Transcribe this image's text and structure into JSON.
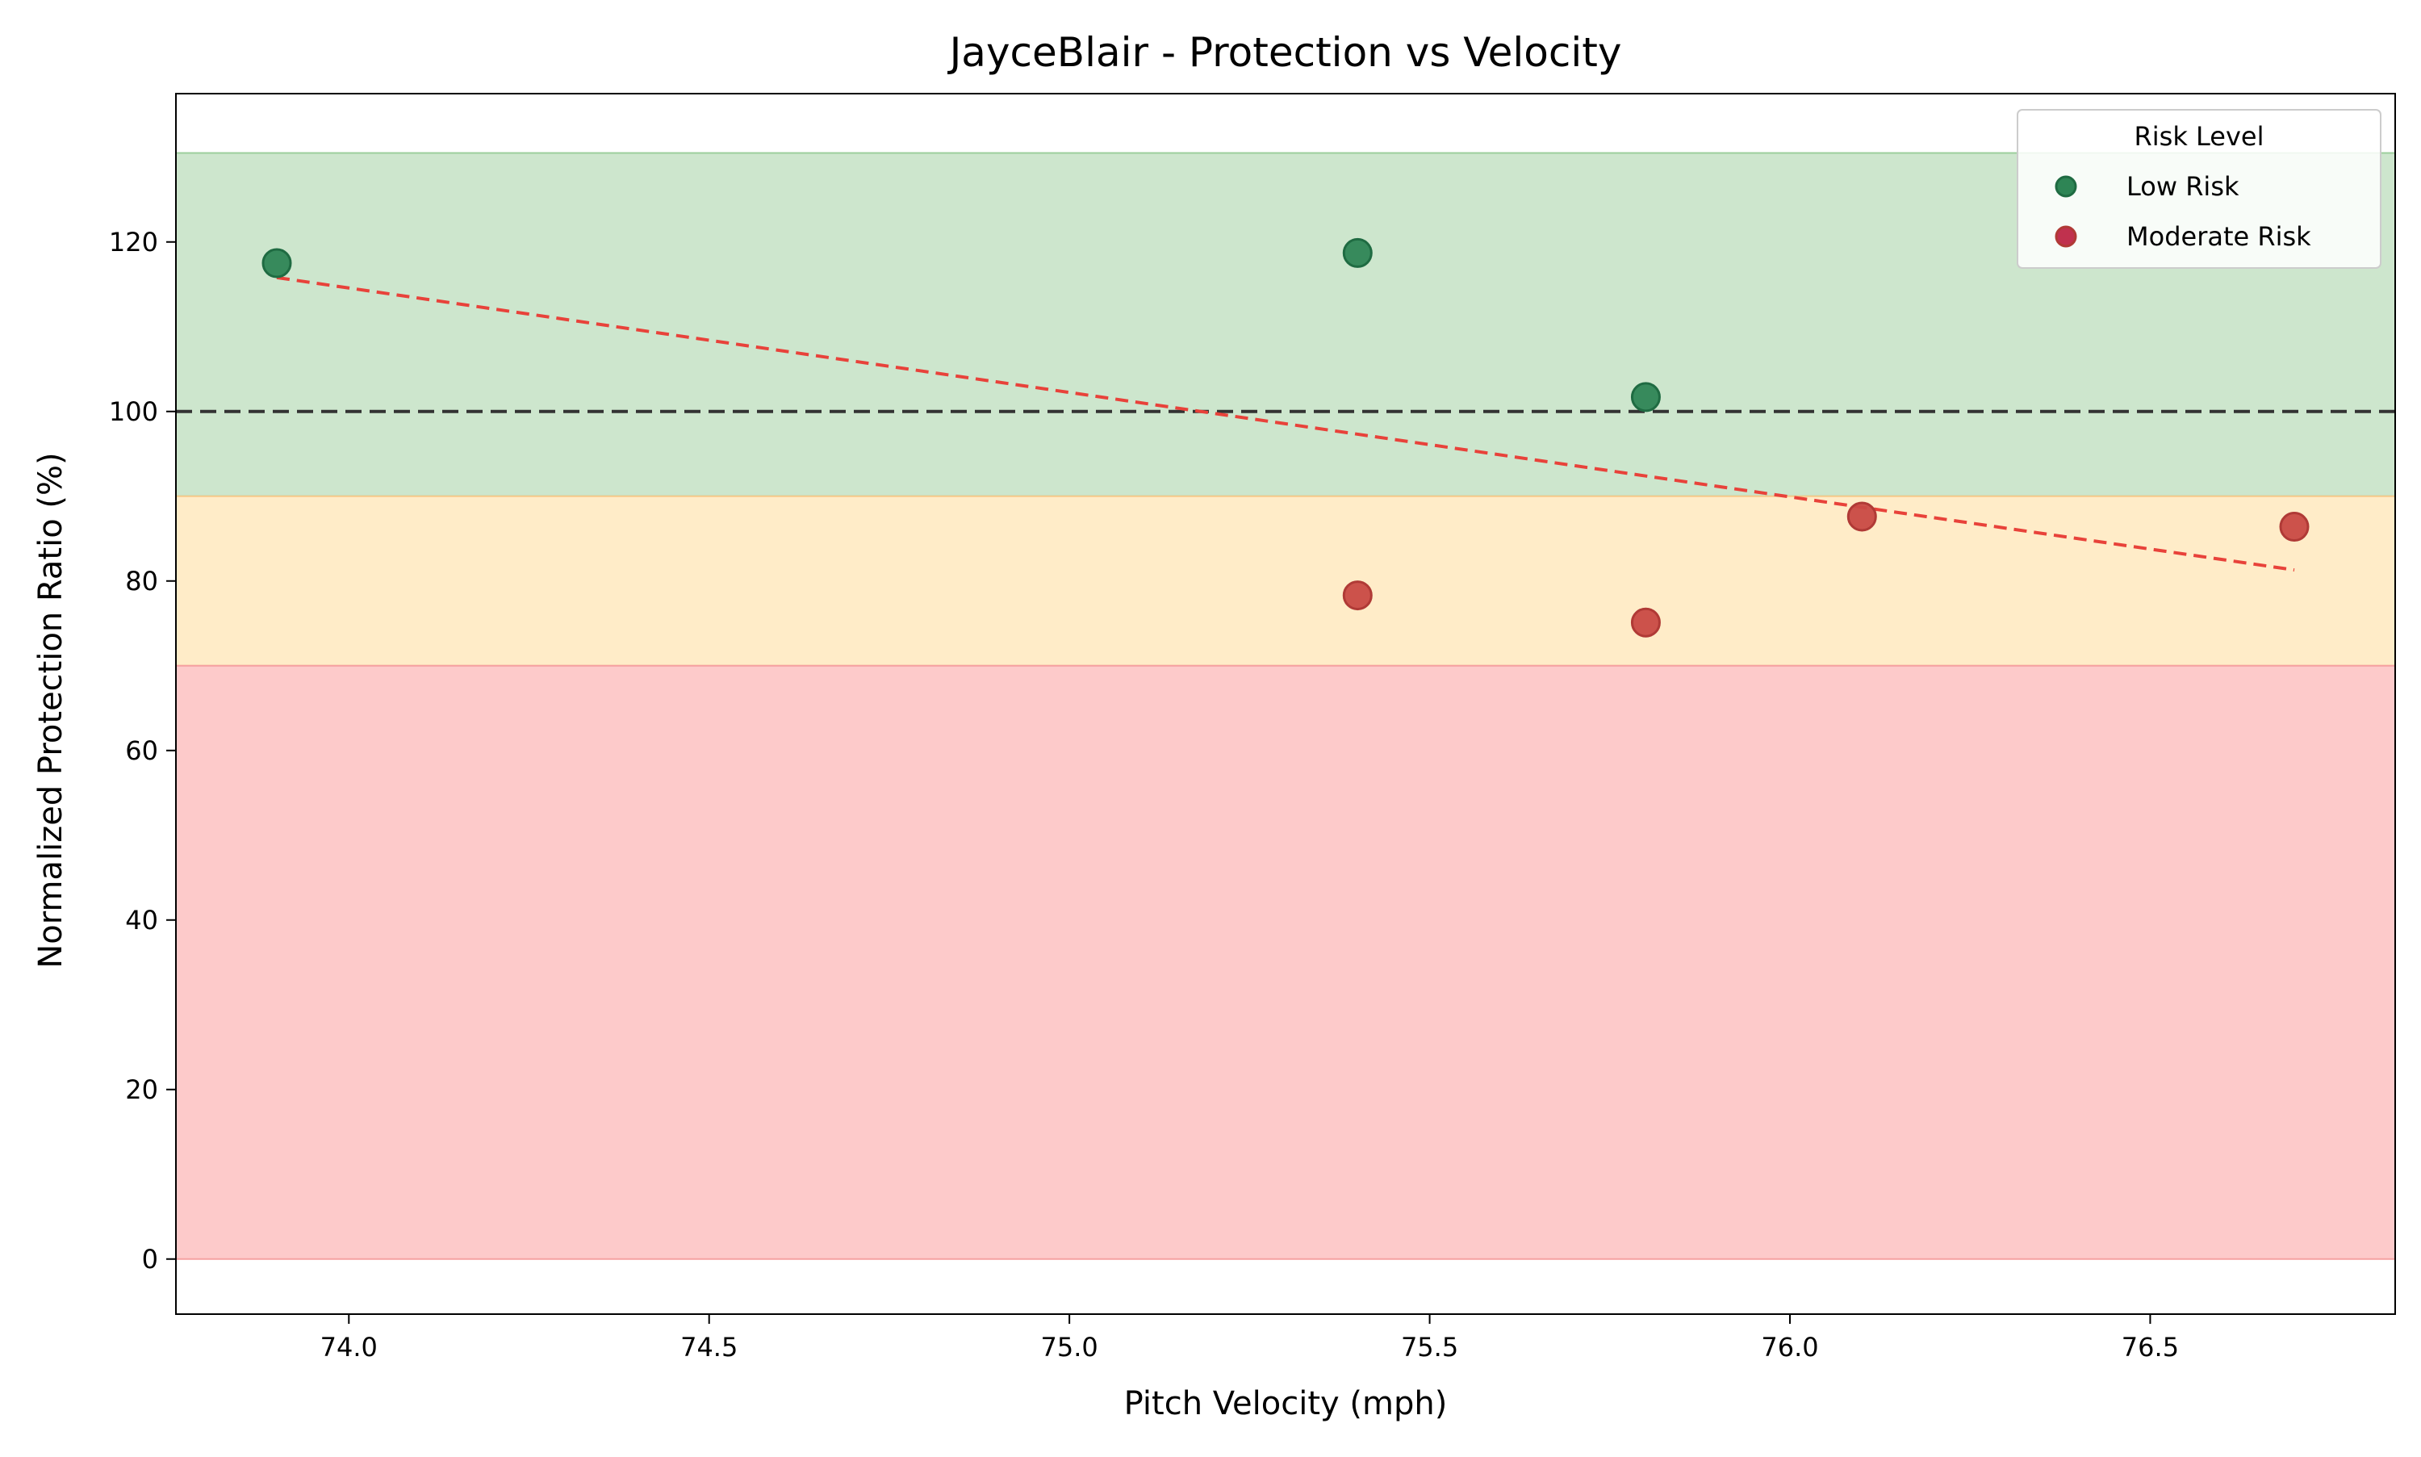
{
  "chart_data": {
    "type": "scatter",
    "title": "JayceBlair - Protection vs Velocity",
    "xlabel": "Pitch Velocity (mph)",
    "ylabel": "Normalized Protection Ratio (%)",
    "xlim": [
      73.76,
      76.84
    ],
    "ylim": [
      -6.5,
      137.5
    ],
    "xticks": [
      74.0,
      74.5,
      75.0,
      75.5,
      76.0,
      76.5
    ],
    "xtick_labels": [
      "74.0",
      "74.5",
      "75.0",
      "75.5",
      "76.0",
      "76.5"
    ],
    "yticks": [
      0,
      20,
      40,
      60,
      80,
      100,
      120
    ],
    "ytick_labels": [
      "0",
      "20",
      "40",
      "60",
      "80",
      "100",
      "120"
    ],
    "grid": false,
    "bands": [
      {
        "y0": 90,
        "y1": 130.5,
        "color": "#cde6cd",
        "edge": "#9ccf9c"
      },
      {
        "y0": 70,
        "y1": 90,
        "color": "#ffecc8",
        "edge": "#f5c98a"
      },
      {
        "y0": 0,
        "y1": 70,
        "color": "#fdcaca",
        "edge": "#f5a0a0"
      }
    ],
    "reference_line": {
      "y": 100,
      "color": "#333333",
      "style": "dashed"
    },
    "trend_line": {
      "x": [
        73.9,
        76.7
      ],
      "y": [
        115.8,
        81.3
      ],
      "color": "#e8423a",
      "style": "dashed"
    },
    "series": [
      {
        "name": "Low Risk",
        "color": "#2e8555",
        "edge": "#1f6b42",
        "points": [
          {
            "x": 73.9,
            "y": 117.5
          },
          {
            "x": 75.4,
            "y": 118.7
          },
          {
            "x": 75.8,
            "y": 101.7
          }
        ]
      },
      {
        "name": "Moderate Risk",
        "color": "#c94a45",
        "edge": "#b03a36",
        "legend_color": "#c0314e",
        "points": [
          {
            "x": 75.4,
            "y": 78.3
          },
          {
            "x": 75.8,
            "y": 75.1
          },
          {
            "x": 76.1,
            "y": 87.6
          },
          {
            "x": 76.7,
            "y": 86.4
          }
        ]
      }
    ],
    "legend": {
      "title": "Risk Level",
      "position": "top-right"
    }
  }
}
